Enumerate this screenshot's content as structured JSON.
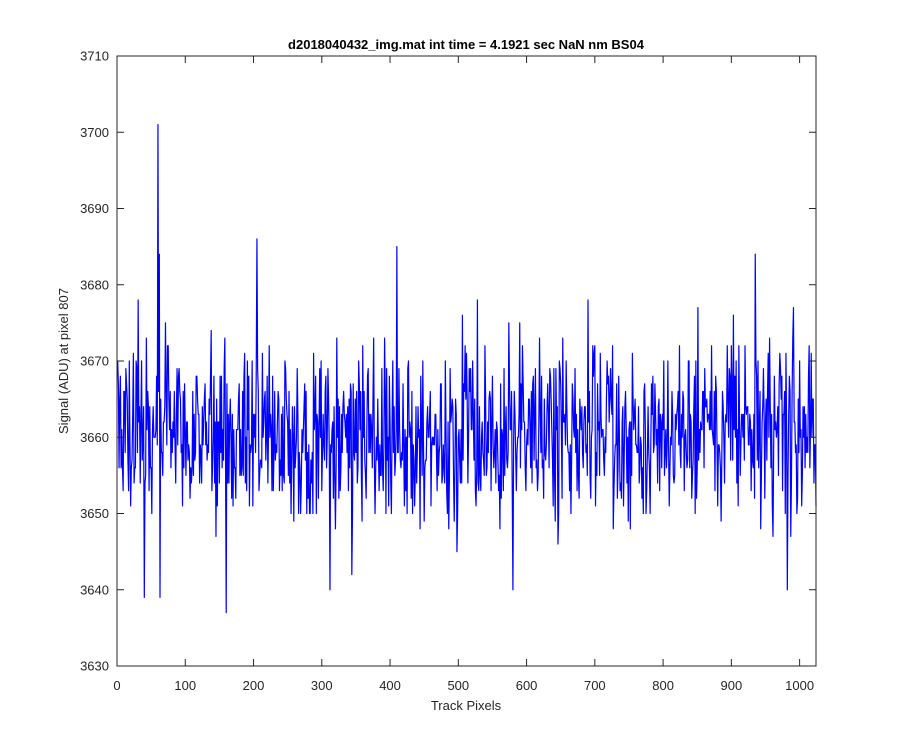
{
  "chart_data": {
    "type": "line",
    "title": "d2018040432_img.mat int time = 4.1921 sec  NaN nm BS04",
    "xlabel": "Track Pixels",
    "ylabel": "Signal (ADU) at pixel 807",
    "xlim": [
      0,
      1024
    ],
    "ylim": [
      3630,
      3710
    ],
    "xticks": [
      0,
      100,
      200,
      300,
      400,
      500,
      600,
      700,
      800,
      900,
      1000
    ],
    "yticks": [
      3630,
      3640,
      3650,
      3660,
      3670,
      3680,
      3690,
      3700,
      3710
    ],
    "grid": false,
    "legend": "none",
    "series": [
      {
        "color": "#0000ff",
        "x_start": 1,
        "x_step": 1,
        "count": 1024,
        "mean": 3660.5,
        "stdev": 6.0,
        "notable_points": [
          {
            "x": 60,
            "y": 3701
          },
          {
            "x": 62,
            "y": 3684
          },
          {
            "x": 40,
            "y": 3639
          },
          {
            "x": 63,
            "y": 3639
          },
          {
            "x": 160,
            "y": 3637
          },
          {
            "x": 205,
            "y": 3686
          },
          {
            "x": 312,
            "y": 3640
          },
          {
            "x": 410,
            "y": 3685
          },
          {
            "x": 580,
            "y": 3640
          },
          {
            "x": 935,
            "y": 3684
          },
          {
            "x": 982,
            "y": 3640
          }
        ]
      }
    ]
  }
}
